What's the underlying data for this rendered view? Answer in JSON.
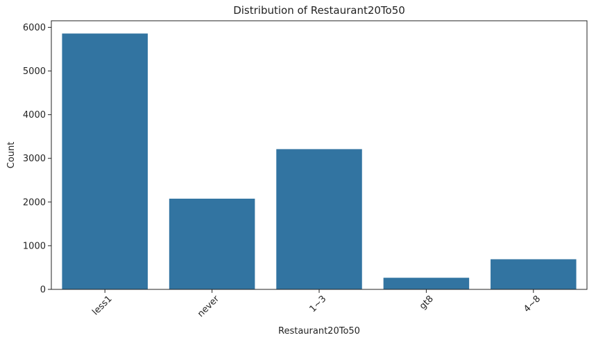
{
  "chart_data": {
    "type": "bar",
    "title": "Distribution of Restaurant20To50",
    "xlabel": "Restaurant20To50",
    "ylabel": "Count",
    "categories": [
      "less1",
      "never",
      "1~3",
      "gt8",
      "4~8"
    ],
    "values": [
      5858,
      2077,
      3211,
      266,
      690
    ],
    "ylim": [
      0,
      6150
    ],
    "yticks": [
      0,
      1000,
      2000,
      3000,
      4000,
      5000,
      6000
    ],
    "bar_color": "#3274a1",
    "grid": false,
    "legend": "none",
    "xtick_rotation": 45
  }
}
